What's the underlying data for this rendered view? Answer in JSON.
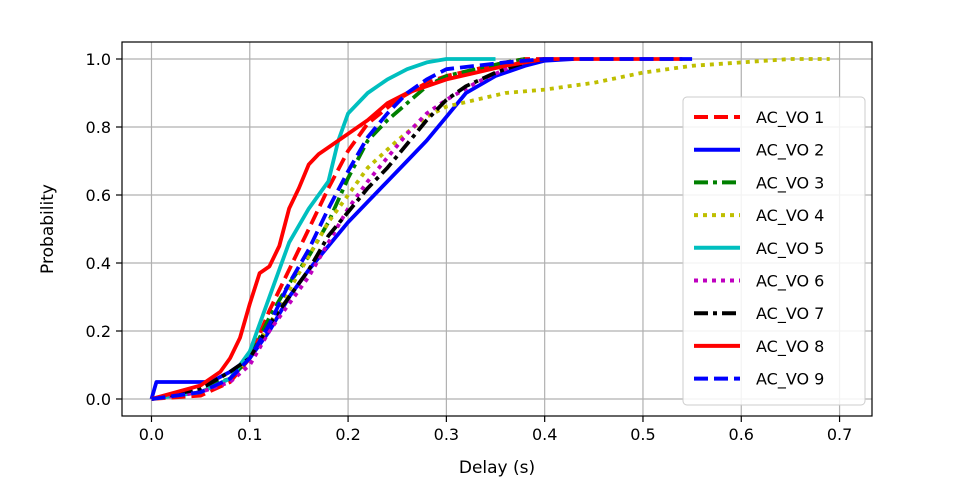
{
  "chart_data": {
    "type": "line",
    "title": "",
    "xlabel": "Delay (s)",
    "ylabel": "Probability",
    "xlim": [
      -0.03,
      0.733
    ],
    "ylim": [
      -0.05,
      1.05
    ],
    "xticks": [
      "0.0",
      "0.1",
      "0.2",
      "0.3",
      "0.4",
      "0.5",
      "0.6",
      "0.7"
    ],
    "yticks": [
      "0.0",
      "0.2",
      "0.4",
      "0.6",
      "0.8",
      "1.0"
    ],
    "grid": true,
    "legend_position": "right",
    "series": [
      {
        "name": "AC_VO 1",
        "color": "#ff0000",
        "dash": "dashed",
        "x": [
          0.0,
          0.05,
          0.08,
          0.1,
          0.12,
          0.14,
          0.16,
          0.18,
          0.2,
          0.22,
          0.25,
          0.28,
          0.3,
          0.33,
          0.36,
          0.38,
          0.4
        ],
        "y": [
          0.0,
          0.01,
          0.05,
          0.12,
          0.26,
          0.38,
          0.5,
          0.62,
          0.73,
          0.81,
          0.88,
          0.93,
          0.95,
          0.97,
          0.99,
          1.0,
          1.0
        ]
      },
      {
        "name": "AC_VO 2",
        "color": "#0000ff",
        "dash": "solid",
        "x": [
          0.0,
          0.005,
          0.03,
          0.06,
          0.08,
          0.1,
          0.12,
          0.14,
          0.16,
          0.18,
          0.2,
          0.22,
          0.24,
          0.26,
          0.28,
          0.3,
          0.32,
          0.35,
          0.38,
          0.4,
          0.43
        ],
        "y": [
          0.0,
          0.05,
          0.05,
          0.05,
          0.08,
          0.12,
          0.2,
          0.3,
          0.38,
          0.45,
          0.52,
          0.58,
          0.64,
          0.7,
          0.76,
          0.83,
          0.9,
          0.95,
          0.98,
          0.995,
          1.0
        ]
      },
      {
        "name": "AC_VO 3",
        "color": "#008000",
        "dash": "dashdot",
        "x": [
          0.0,
          0.04,
          0.08,
          0.1,
          0.12,
          0.14,
          0.16,
          0.18,
          0.2,
          0.22,
          0.24,
          0.26,
          0.28,
          0.3,
          0.33,
          0.36,
          0.38
        ],
        "y": [
          0.0,
          0.02,
          0.06,
          0.12,
          0.24,
          0.34,
          0.42,
          0.52,
          0.65,
          0.76,
          0.82,
          0.87,
          0.92,
          0.95,
          0.97,
          0.99,
          1.0
        ]
      },
      {
        "name": "AC_VO 4",
        "color": "#bfbf00",
        "dash": "dotted",
        "x": [
          0.0,
          0.05,
          0.08,
          0.1,
          0.12,
          0.14,
          0.16,
          0.18,
          0.2,
          0.22,
          0.25,
          0.28,
          0.3,
          0.33,
          0.36,
          0.4,
          0.45,
          0.5,
          0.55,
          0.6,
          0.65,
          0.69
        ],
        "y": [
          0.0,
          0.02,
          0.06,
          0.12,
          0.22,
          0.32,
          0.42,
          0.52,
          0.6,
          0.68,
          0.76,
          0.83,
          0.86,
          0.88,
          0.9,
          0.91,
          0.93,
          0.96,
          0.98,
          0.99,
          1.0,
          1.0
        ]
      },
      {
        "name": "AC_VO 5",
        "color": "#00bfbf",
        "dash": "solid",
        "x": [
          0.0,
          0.05,
          0.08,
          0.1,
          0.12,
          0.14,
          0.16,
          0.18,
          0.19,
          0.2,
          0.22,
          0.24,
          0.26,
          0.28,
          0.3,
          0.32,
          0.35
        ],
        "y": [
          0.0,
          0.02,
          0.06,
          0.14,
          0.3,
          0.46,
          0.56,
          0.64,
          0.76,
          0.84,
          0.9,
          0.94,
          0.97,
          0.99,
          1.0,
          1.0,
          1.0
        ]
      },
      {
        "name": "AC_VO 6",
        "color": "#bf00bf",
        "dash": "dotted",
        "x": [
          0.0,
          0.05,
          0.08,
          0.1,
          0.12,
          0.14,
          0.16,
          0.18,
          0.2,
          0.22,
          0.24,
          0.26,
          0.28,
          0.3,
          0.33,
          0.36,
          0.38
        ],
        "y": [
          0.0,
          0.02,
          0.05,
          0.1,
          0.2,
          0.28,
          0.36,
          0.46,
          0.56,
          0.64,
          0.71,
          0.78,
          0.84,
          0.88,
          0.93,
          0.97,
          1.0
        ]
      },
      {
        "name": "AC_VO 7",
        "color": "#000000",
        "dash": "dashdot",
        "x": [
          0.0,
          0.05,
          0.08,
          0.1,
          0.12,
          0.14,
          0.16,
          0.18,
          0.2,
          0.22,
          0.24,
          0.26,
          0.28,
          0.3,
          0.32,
          0.35,
          0.38,
          0.4
        ],
        "y": [
          0.0,
          0.03,
          0.08,
          0.12,
          0.22,
          0.3,
          0.38,
          0.48,
          0.55,
          0.62,
          0.68,
          0.75,
          0.82,
          0.88,
          0.92,
          0.96,
          0.99,
          1.0
        ]
      },
      {
        "name": "AC_VO 8",
        "color": "#ff0000",
        "dash": "solid",
        "x": [
          0.0,
          0.05,
          0.07,
          0.08,
          0.09,
          0.1,
          0.11,
          0.12,
          0.13,
          0.14,
          0.15,
          0.16,
          0.17,
          0.18,
          0.2,
          0.22,
          0.24,
          0.26,
          0.28,
          0.3,
          0.33,
          0.36,
          0.4,
          0.45,
          0.5,
          0.54
        ],
        "y": [
          0.0,
          0.04,
          0.08,
          0.12,
          0.18,
          0.28,
          0.37,
          0.39,
          0.45,
          0.56,
          0.62,
          0.69,
          0.72,
          0.74,
          0.78,
          0.82,
          0.87,
          0.9,
          0.92,
          0.94,
          0.96,
          0.98,
          1.0,
          1.0,
          1.0,
          1.0
        ]
      },
      {
        "name": "AC_VO 9",
        "color": "#0000ff",
        "dash": "dashed",
        "x": [
          0.0,
          0.05,
          0.08,
          0.1,
          0.12,
          0.14,
          0.16,
          0.18,
          0.2,
          0.22,
          0.24,
          0.26,
          0.28,
          0.3,
          0.33,
          0.36,
          0.4,
          0.45,
          0.5,
          0.55
        ],
        "y": [
          0.0,
          0.02,
          0.06,
          0.12,
          0.22,
          0.34,
          0.44,
          0.56,
          0.67,
          0.77,
          0.84,
          0.9,
          0.94,
          0.97,
          0.98,
          0.99,
          1.0,
          1.0,
          1.0,
          1.0
        ]
      }
    ]
  }
}
